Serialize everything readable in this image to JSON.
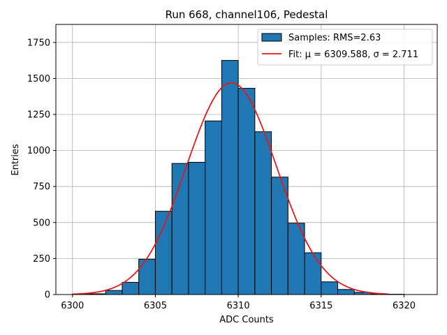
{
  "chart_data": {
    "type": "bar",
    "title": "Run 668, channel106, Pedestal",
    "xlabel": "ADC Counts",
    "ylabel": "Entries",
    "xlim": [
      6299.0,
      6322.0
    ],
    "ylim": [
      0,
      1875
    ],
    "x_ticks": [
      6300,
      6305,
      6310,
      6315,
      6320
    ],
    "y_ticks": [
      0,
      250,
      500,
      750,
      1000,
      1250,
      1500,
      1750
    ],
    "grid": true,
    "legend_position": "top-right",
    "bin_width": 1,
    "bins": [
      {
        "x": 6300,
        "count": 3
      },
      {
        "x": 6301,
        "count": 5
      },
      {
        "x": 6302,
        "count": 28
      },
      {
        "x": 6303,
        "count": 85
      },
      {
        "x": 6304,
        "count": 245
      },
      {
        "x": 6305,
        "count": 578
      },
      {
        "x": 6306,
        "count": 910
      },
      {
        "x": 6307,
        "count": 918
      },
      {
        "x": 6308,
        "count": 1205
      },
      {
        "x": 6309,
        "count": 1625
      },
      {
        "x": 6310,
        "count": 1432
      },
      {
        "x": 6311,
        "count": 1130
      },
      {
        "x": 6312,
        "count": 815
      },
      {
        "x": 6313,
        "count": 495
      },
      {
        "x": 6314,
        "count": 290
      },
      {
        "x": 6315,
        "count": 88
      },
      {
        "x": 6316,
        "count": 35
      },
      {
        "x": 6317,
        "count": 15
      },
      {
        "x": 6318,
        "count": 5
      },
      {
        "x": 6319,
        "count": 2
      },
      {
        "x": 6320,
        "count": 0
      }
    ],
    "fit": {
      "mu": 6309.588,
      "sigma": 2.711,
      "amplitude": 1470,
      "x_range": [
        6300,
        6319
      ]
    },
    "series": [
      {
        "name": "Samples: RMS=2.63",
        "color": "#1f77b4",
        "kind": "histogram"
      },
      {
        "name": "Fit: μ = 6309.588, σ = 2.711",
        "color": "#e31a1c",
        "kind": "line"
      }
    ]
  }
}
